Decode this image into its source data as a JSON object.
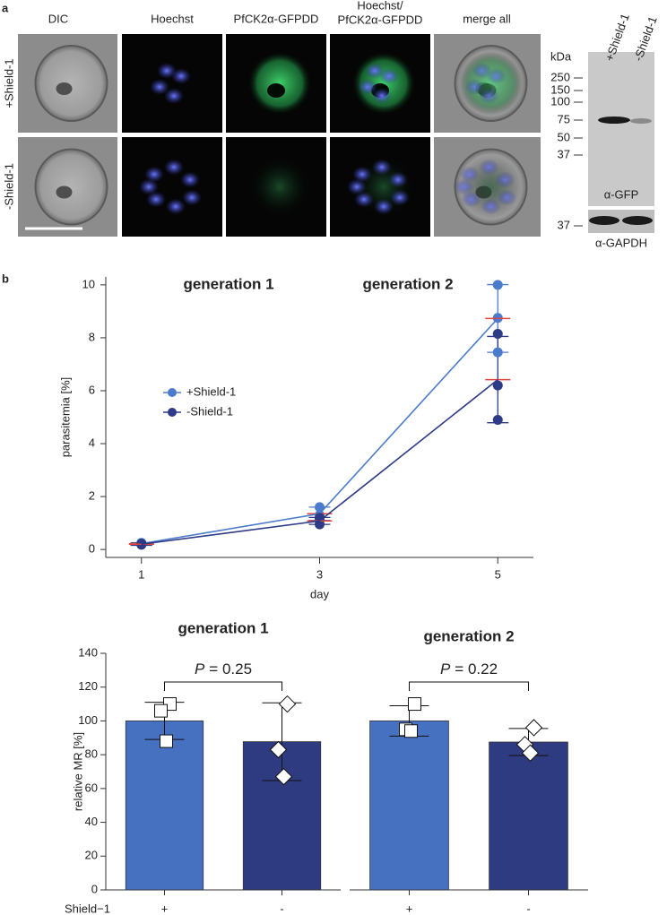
{
  "panel_a": {
    "label": "a",
    "columns": [
      "DIC",
      "Hoechst",
      "PfCK2α-GFPDD",
      [
        "Hoechst/",
        "PfCK2α-GFPDD"
      ],
      "merge all"
    ],
    "rows": [
      "+Shield-1",
      "-Shield-1"
    ],
    "blot": {
      "unit": "kDa",
      "markers": [
        "250",
        "150",
        "100",
        "75",
        "50",
        "37"
      ],
      "lanes": [
        "+Shield-1",
        "-Shield-1"
      ],
      "label": "α-GFP",
      "gapdh_marker": "37",
      "gapdh_label": "α-GAPDH"
    }
  },
  "panel_b": {
    "label": "b"
  },
  "chart_data": [
    {
      "type": "line",
      "annotations": [
        "generation 1",
        "generation 2"
      ],
      "xlabel": "day",
      "ylabel": "parasitemia [%]",
      "x": [
        1,
        3,
        5
      ],
      "xlim": [
        0.6,
        5.4
      ],
      "ylim": [
        -0.3,
        10.3
      ],
      "xticks": [
        1,
        3,
        5
      ],
      "yticks": [
        0,
        2,
        4,
        6,
        8,
        10
      ],
      "mean_color": "#e3443c",
      "legend": "left",
      "series": [
        {
          "name": "+Shield-1",
          "color": "#4b7bcb",
          "values": [
            0.22,
            1.35,
            8.73
          ],
          "errors": [
            0.04,
            0.25,
            1.28
          ],
          "points": [
            [
              0.25,
              0.2,
              0.2
            ],
            [
              1.6,
              1.3,
              1.15
            ],
            [
              10.0,
              8.75,
              7.45
            ]
          ]
        },
        {
          "name": "-Shield-1",
          "color": "#2d3a86",
          "values": [
            0.2,
            1.08,
            6.42
          ],
          "errors": [
            0.04,
            0.13,
            1.63
          ],
          "points": [
            [
              0.22,
              0.2,
              0.18
            ],
            [
              1.2,
              1.1,
              0.95
            ],
            [
              8.15,
              6.2,
              4.9
            ]
          ]
        }
      ]
    },
    {
      "type": "bar",
      "title": "generation 1",
      "ylabel": "relative MR [%]",
      "row_label": "Shield−1",
      "categories": [
        "+",
        "-"
      ],
      "values": [
        100,
        87.7
      ],
      "errors": [
        11,
        23
      ],
      "points": [
        [
          110,
          106,
          88
        ],
        [
          110,
          83,
          67
        ]
      ],
      "colors": [
        "#4670c0",
        "#2f3b80"
      ],
      "markers": [
        "square",
        "diamond"
      ],
      "ylim": [
        0,
        140
      ],
      "yticks": [
        0,
        20,
        40,
        60,
        80,
        100,
        120,
        140
      ],
      "annotation": {
        "symbol": "P",
        "text": "= 0.25"
      }
    },
    {
      "type": "bar",
      "title": "generation 2",
      "categories": [
        "+",
        "-"
      ],
      "values": [
        100,
        87.5
      ],
      "errors": [
        9,
        8
      ],
      "points": [
        [
          110,
          95,
          94
        ],
        [
          96,
          86,
          81
        ]
      ],
      "colors": [
        "#4670c0",
        "#2f3b80"
      ],
      "markers": [
        "square",
        "diamond"
      ],
      "ylim": [
        0,
        140
      ],
      "annotation": {
        "symbol": "P",
        "text": "= 0.22"
      }
    }
  ]
}
